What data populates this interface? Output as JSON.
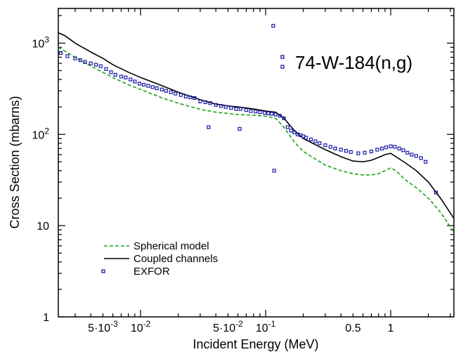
{
  "chart_data": {
    "type": "line",
    "title": "",
    "xlabel": "Incident Energy (MeV)",
    "ylabel": "Cross Section (mbarns)",
    "x_scale": "log",
    "y_scale": "log",
    "xlim": [
      0.0022,
      3.2
    ],
    "ylim": [
      1,
      2400
    ],
    "grid": false,
    "legend_position": "lower-left",
    "annotation": "74-W-184(n,g)",
    "x_ticks": [
      {
        "value": 0.005,
        "base": "5·10",
        "exp": "-3"
      },
      {
        "value": 0.01,
        "base": "10",
        "exp": "-2"
      },
      {
        "value": 0.05,
        "base": "5·10",
        "exp": "-2"
      },
      {
        "value": 0.1,
        "base": "10",
        "exp": "-1"
      },
      {
        "value": 0.5,
        "base": "0.5",
        "exp": ""
      },
      {
        "value": 1,
        "base": "1",
        "exp": ""
      }
    ],
    "y_ticks": [
      {
        "value": 1,
        "base": "1",
        "exp": ""
      },
      {
        "value": 10,
        "base": "10",
        "exp": ""
      },
      {
        "value": 100,
        "base": "10",
        "exp": "2"
      },
      {
        "value": 1000,
        "base": "10",
        "exp": "3"
      }
    ],
    "colors": {
      "spherical": "#1aa31a",
      "coupled": "#000000",
      "exfor": "#1a1aa8"
    },
    "series": [
      {
        "name": "Spherical model",
        "style": "dashed",
        "x": [
          0.0022,
          0.003,
          0.004,
          0.006,
          0.008,
          0.01,
          0.015,
          0.02,
          0.03,
          0.04,
          0.06,
          0.08,
          0.1,
          0.12,
          0.14,
          0.17,
          0.2,
          0.3,
          0.4,
          0.5,
          0.6,
          0.7,
          0.8,
          0.9,
          1.0,
          1.1,
          1.3,
          1.6,
          2.0,
          2.5,
          3.2
        ],
        "y": [
          900,
          700,
          560,
          420,
          350,
          310,
          250,
          220,
          188,
          175,
          165,
          162,
          158,
          150,
          120,
          82,
          65,
          46,
          40,
          37,
          36,
          36,
          37,
          40,
          43,
          40,
          32,
          26,
          20,
          14,
          8.5
        ]
      },
      {
        "name": "Coupled channels",
        "style": "solid",
        "x": [
          0.0022,
          0.0025,
          0.003,
          0.004,
          0.005,
          0.006,
          0.008,
          0.01,
          0.015,
          0.02,
          0.03,
          0.04,
          0.05,
          0.06,
          0.08,
          0.1,
          0.12,
          0.14,
          0.17,
          0.2,
          0.3,
          0.4,
          0.5,
          0.6,
          0.7,
          0.8,
          0.9,
          1.0,
          1.1,
          1.3,
          1.6,
          2.0,
          2.5,
          3.2
        ],
        "y": [
          1300,
          1200,
          1000,
          800,
          680,
          580,
          480,
          420,
          340,
          290,
          240,
          215,
          205,
          200,
          190,
          180,
          175,
          150,
          110,
          90,
          68,
          57,
          51,
          50,
          52,
          56,
          60,
          62,
          57,
          49,
          40,
          30,
          20,
          12
        ]
      },
      {
        "name": "EXFOR",
        "style": "markers",
        "x": [
          0.0023,
          0.0026,
          0.003,
          0.0033,
          0.0036,
          0.004,
          0.0044,
          0.0048,
          0.0053,
          0.0058,
          0.0063,
          0.007,
          0.0076,
          0.0083,
          0.009,
          0.0098,
          0.0106,
          0.0115,
          0.0125,
          0.0135,
          0.0148,
          0.016,
          0.0175,
          0.019,
          0.021,
          0.023,
          0.025,
          0.027,
          0.03,
          0.033,
          0.036,
          0.04,
          0.044,
          0.048,
          0.053,
          0.058,
          0.063,
          0.07,
          0.076,
          0.083,
          0.09,
          0.098,
          0.105,
          0.112,
          0.12,
          0.13,
          0.14,
          0.15,
          0.16,
          0.17,
          0.18,
          0.19,
          0.2,
          0.21,
          0.23,
          0.25,
          0.27,
          0.3,
          0.33,
          0.36,
          0.4,
          0.44,
          0.48,
          0.55,
          0.62,
          0.7,
          0.78,
          0.85,
          0.92,
          1.0,
          1.08,
          1.17,
          1.26,
          1.36,
          1.47,
          1.6,
          1.75,
          1.9,
          2.3,
          0.115,
          0.117,
          0.035,
          0.062
        ],
        "y": [
          780,
          720,
          680,
          650,
          620,
          600,
          580,
          560,
          520,
          480,
          450,
          430,
          420,
          400,
          380,
          360,
          350,
          340,
          330,
          320,
          310,
          300,
          290,
          280,
          270,
          260,
          255,
          250,
          230,
          225,
          220,
          210,
          205,
          200,
          195,
          190,
          190,
          185,
          180,
          178,
          175,
          172,
          170,
          168,
          165,
          160,
          150,
          120,
          110,
          105,
          100,
          98,
          95,
          92,
          88,
          84,
          80,
          76,
          73,
          70,
          68,
          66,
          64,
          62,
          63,
          65,
          68,
          70,
          72,
          74,
          73,
          70,
          67,
          63,
          60,
          58,
          55,
          50,
          23,
          1550,
          40,
          120,
          115
        ]
      }
    ]
  }
}
